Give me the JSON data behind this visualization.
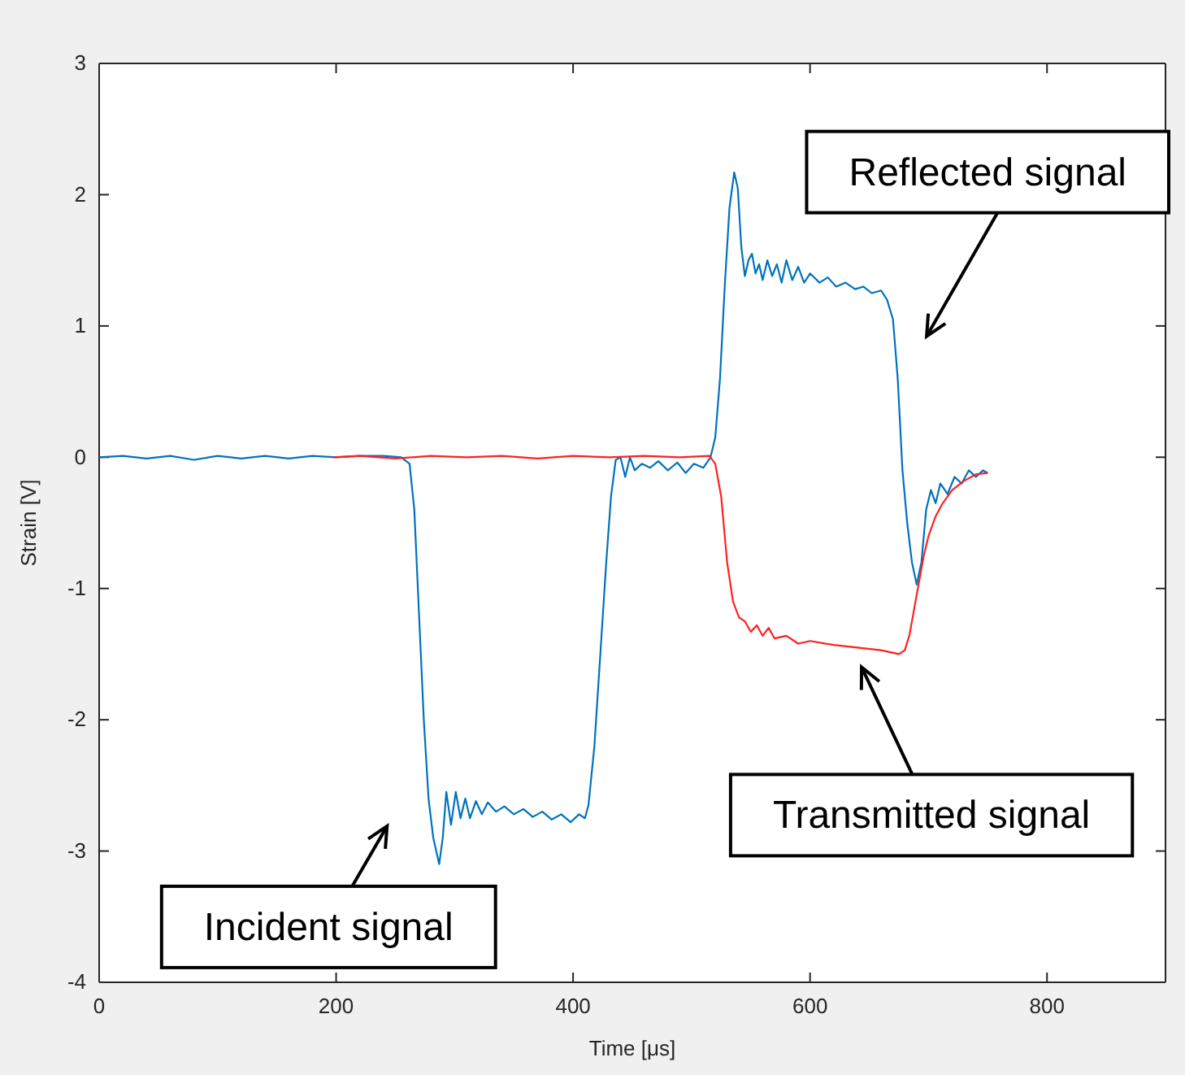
{
  "chart_data": {
    "type": "line",
    "xlabel": "Time [μs]",
    "ylabel": "Strain [V]",
    "xlim": [
      0,
      900
    ],
    "ylim": [
      -4,
      3
    ],
    "xticks": [
      0,
      200,
      400,
      600,
      800
    ],
    "yticks": [
      -4,
      -3,
      -2,
      -1,
      0,
      1,
      2,
      3
    ],
    "grid": false,
    "marker": "none",
    "line_style": "solid",
    "series": [
      {
        "color": "#0072bd",
        "x": [
          0,
          20,
          40,
          60,
          80,
          100,
          120,
          140,
          160,
          180,
          200,
          220,
          240,
          255,
          262,
          266,
          270,
          274,
          278,
          282,
          287,
          290,
          293,
          297,
          301,
          305,
          309,
          313,
          318,
          323,
          328,
          335,
          342,
          350,
          358,
          366,
          374,
          382,
          390,
          398,
          405,
          410,
          413,
          418,
          423,
          428,
          432,
          436,
          440,
          444,
          448,
          452,
          458,
          465,
          472,
          480,
          488,
          495,
          502,
          510,
          516,
          520,
          524,
          528,
          532,
          536,
          539,
          542,
          545,
          548,
          551,
          554,
          557,
          560,
          564,
          568,
          572,
          576,
          580,
          585,
          590,
          595,
          600,
          608,
          615,
          622,
          630,
          638,
          645,
          652,
          660,
          665,
          670,
          674,
          678,
          682,
          686,
          690,
          694,
          698,
          702,
          706,
          710,
          716,
          722,
          728,
          734,
          740,
          746,
          750
        ],
        "values": [
          0,
          0.01,
          -0.01,
          0.01,
          -0.02,
          0.01,
          -0.01,
          0.01,
          -0.01,
          0.01,
          0,
          0.01,
          0.01,
          0,
          -0.05,
          -0.4,
          -1.2,
          -2.0,
          -2.6,
          -2.9,
          -3.1,
          -2.9,
          -2.55,
          -2.8,
          -2.55,
          -2.75,
          -2.6,
          -2.75,
          -2.62,
          -2.72,
          -2.63,
          -2.7,
          -2.66,
          -2.72,
          -2.68,
          -2.74,
          -2.7,
          -2.76,
          -2.72,
          -2.78,
          -2.72,
          -2.75,
          -2.65,
          -2.2,
          -1.5,
          -0.8,
          -0.3,
          -0.02,
          0,
          -0.15,
          0,
          -0.1,
          -0.05,
          -0.08,
          -0.03,
          -0.1,
          -0.04,
          -0.12,
          -0.05,
          -0.08,
          0,
          0.15,
          0.6,
          1.3,
          1.9,
          2.17,
          2.05,
          1.6,
          1.38,
          1.5,
          1.55,
          1.4,
          1.47,
          1.35,
          1.5,
          1.38,
          1.47,
          1.33,
          1.5,
          1.35,
          1.45,
          1.33,
          1.4,
          1.33,
          1.37,
          1.3,
          1.33,
          1.28,
          1.3,
          1.25,
          1.27,
          1.2,
          1.05,
          0.6,
          -0.1,
          -0.5,
          -0.8,
          -0.97,
          -0.8,
          -0.4,
          -0.25,
          -0.35,
          -0.2,
          -0.28,
          -0.15,
          -0.2,
          -0.1,
          -0.15,
          -0.1,
          -0.12
        ]
      },
      {
        "color": "#ff2020",
        "x": [
          198,
          220,
          250,
          280,
          310,
          340,
          370,
          400,
          430,
          460,
          490,
          515,
          520,
          525,
          530,
          535,
          540,
          545,
          550,
          555,
          560,
          565,
          570,
          580,
          590,
          600,
          620,
          640,
          660,
          675,
          680,
          684,
          688,
          692,
          696,
          700,
          706,
          712,
          720,
          730,
          740,
          750
        ],
        "values": [
          0,
          0.01,
          -0.01,
          0.01,
          0,
          0.01,
          -0.01,
          0.01,
          0,
          0.01,
          0,
          0.01,
          -0.05,
          -0.3,
          -0.8,
          -1.1,
          -1.22,
          -1.25,
          -1.33,
          -1.28,
          -1.36,
          -1.3,
          -1.38,
          -1.36,
          -1.42,
          -1.4,
          -1.43,
          -1.45,
          -1.47,
          -1.5,
          -1.47,
          -1.35,
          -1.15,
          -0.95,
          -0.75,
          -0.6,
          -0.45,
          -0.35,
          -0.25,
          -0.18,
          -0.13,
          -0.12
        ]
      }
    ],
    "annotations": [
      "Reflected signal",
      "Transmitted signal",
      "Incident signal"
    ]
  }
}
